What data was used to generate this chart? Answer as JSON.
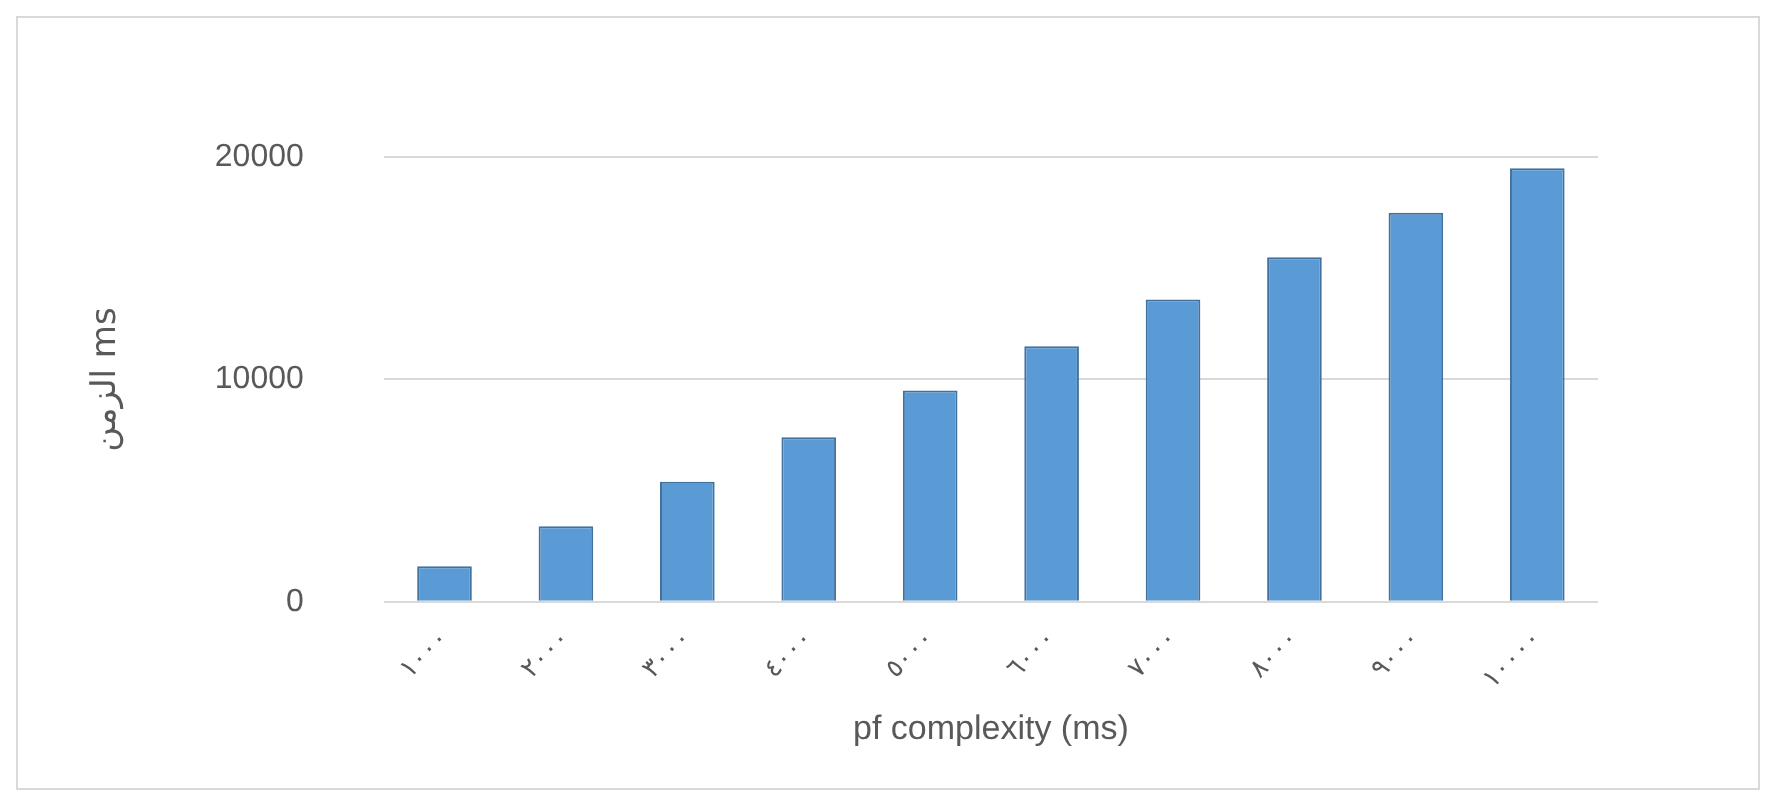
{
  "chart_data": {
    "type": "bar",
    "xlabel": "pf complexity (ms)",
    "ylabel": "الزمن ms",
    "categories": [
      "١٠٠٠",
      "٢٠٠٠",
      "٣٠٠٠",
      "٤٠٠٠",
      "٥٠٠٠",
      "٦٠٠٠",
      "٧٠٠٠",
      "٨٠٠٠",
      "٩٠٠٠",
      "١٠٠٠٠"
    ],
    "values": [
      1600,
      3400,
      5400,
      7400,
      9500,
      11500,
      13600,
      15500,
      17500,
      19500
    ],
    "color": "#5b9bd5",
    "ylim": [
      0,
      20000
    ],
    "yticks": [
      0,
      10000,
      20000
    ],
    "grid": "y",
    "legend": false
  }
}
